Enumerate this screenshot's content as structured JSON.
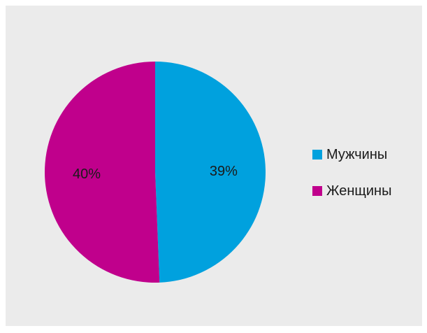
{
  "chart_data": {
    "type": "pie",
    "categories": [
      "Мужчины",
      "Женщины"
    ],
    "values": [
      39,
      40
    ],
    "labels": [
      "39%",
      "40%"
    ],
    "colors": [
      "#00a1de",
      "#c0008c"
    ],
    "legend_position": "right"
  }
}
